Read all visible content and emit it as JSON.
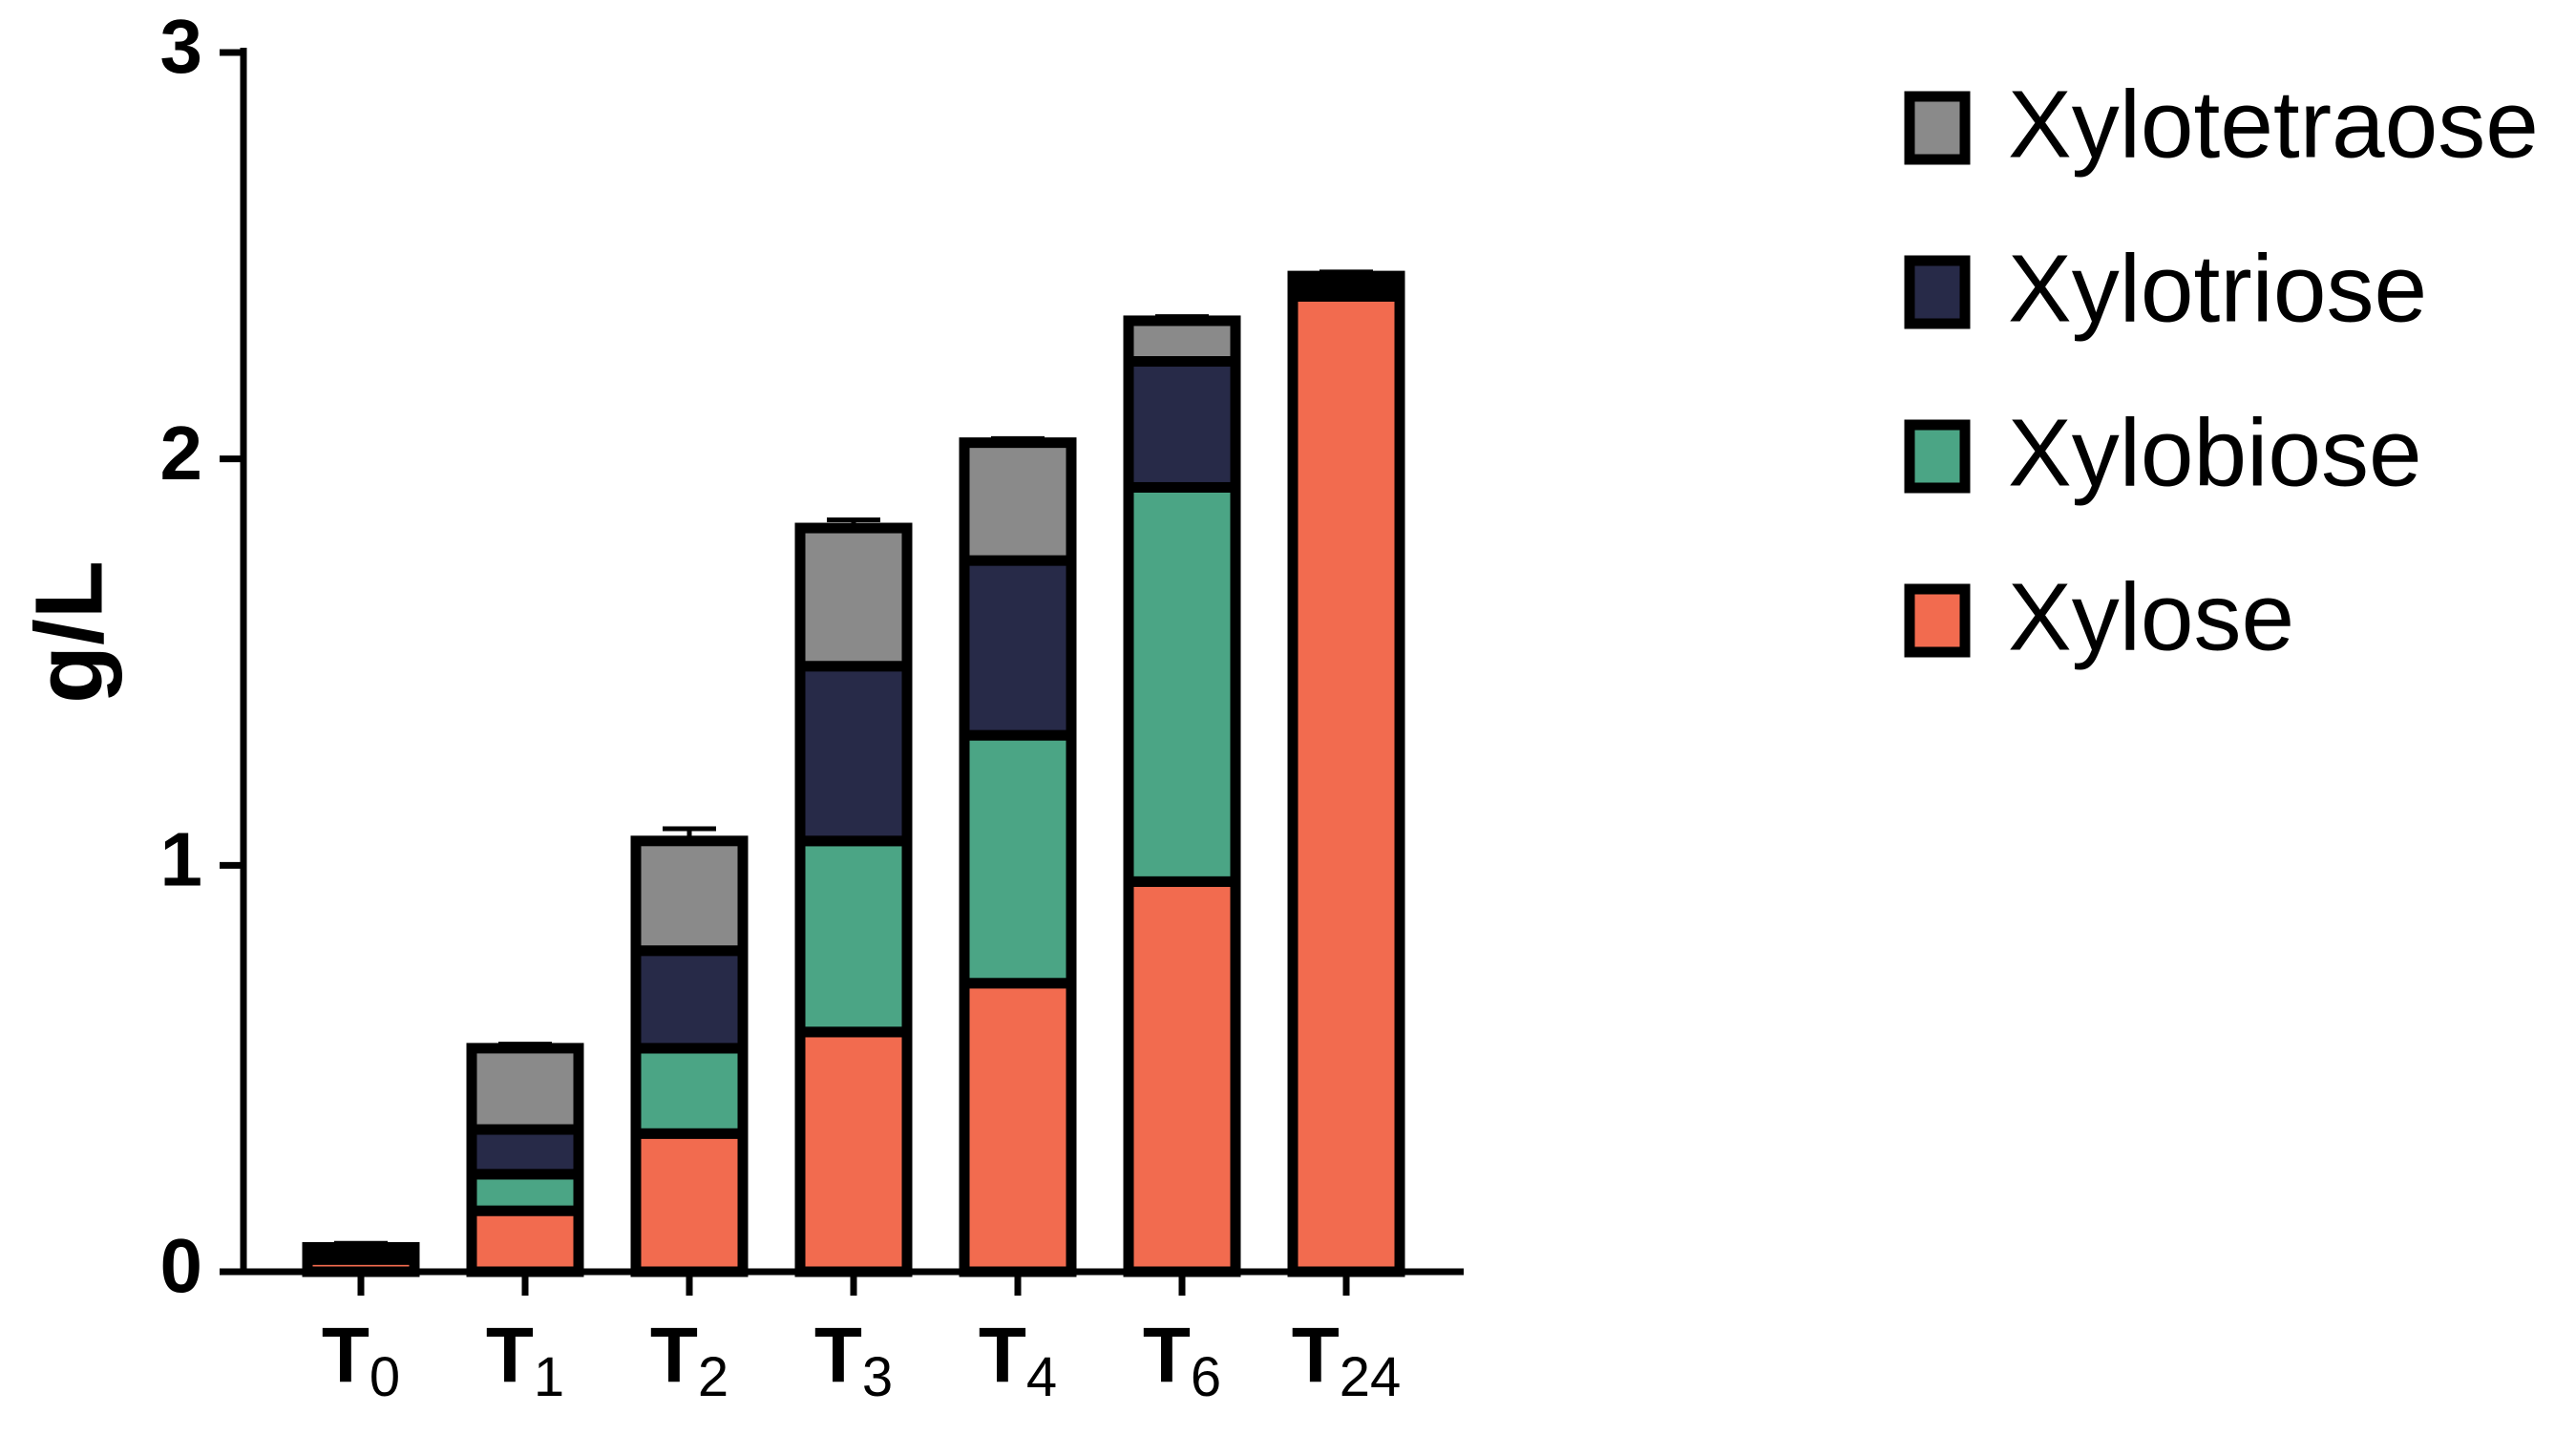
{
  "chart_data": {
    "type": "stacked_bar",
    "y_label": "g/L",
    "categories": [
      "T0",
      "T1",
      "T2",
      "T3",
      "T4",
      "T6",
      "T24"
    ],
    "series": [
      {
        "name": "Xylose",
        "color": "#f26b4f",
        "values": [
          0.03,
          0.15,
          0.34,
          0.59,
          0.71,
          0.96,
          2.4
        ],
        "errors": [
          0.01,
          0.01,
          0.02,
          0.02,
          0.02,
          0.04,
          0.01
        ]
      },
      {
        "name": "Xylobiose",
        "color": "#4ba585",
        "values": [
          0.01,
          0.09,
          0.21,
          0.47,
          0.61,
          0.97,
          0.02
        ],
        "errors": [
          0.01,
          0.01,
          0.02,
          0.02,
          0.02,
          0.07,
          0.01
        ]
      },
      {
        "name": "Xylotriose",
        "color": "#272a48",
        "values": [
          0.01,
          0.11,
          0.24,
          0.43,
          0.43,
          0.31,
          0.01
        ],
        "errors": [
          0.01,
          0.01,
          0.02,
          0.02,
          0.02,
          0.02,
          0.01
        ]
      },
      {
        "name": "Xylotetraose",
        "color": "#8a8a8a",
        "values": [
          0.01,
          0.2,
          0.27,
          0.34,
          0.29,
          0.1,
          0.02
        ],
        "errors": [
          0.01,
          0.01,
          0.03,
          0.02,
          0.01,
          0.01,
          0.01
        ]
      }
    ],
    "ylim": [
      0,
      3
    ],
    "yticks": [
      0,
      1,
      2,
      3
    ],
    "legend": "right"
  }
}
